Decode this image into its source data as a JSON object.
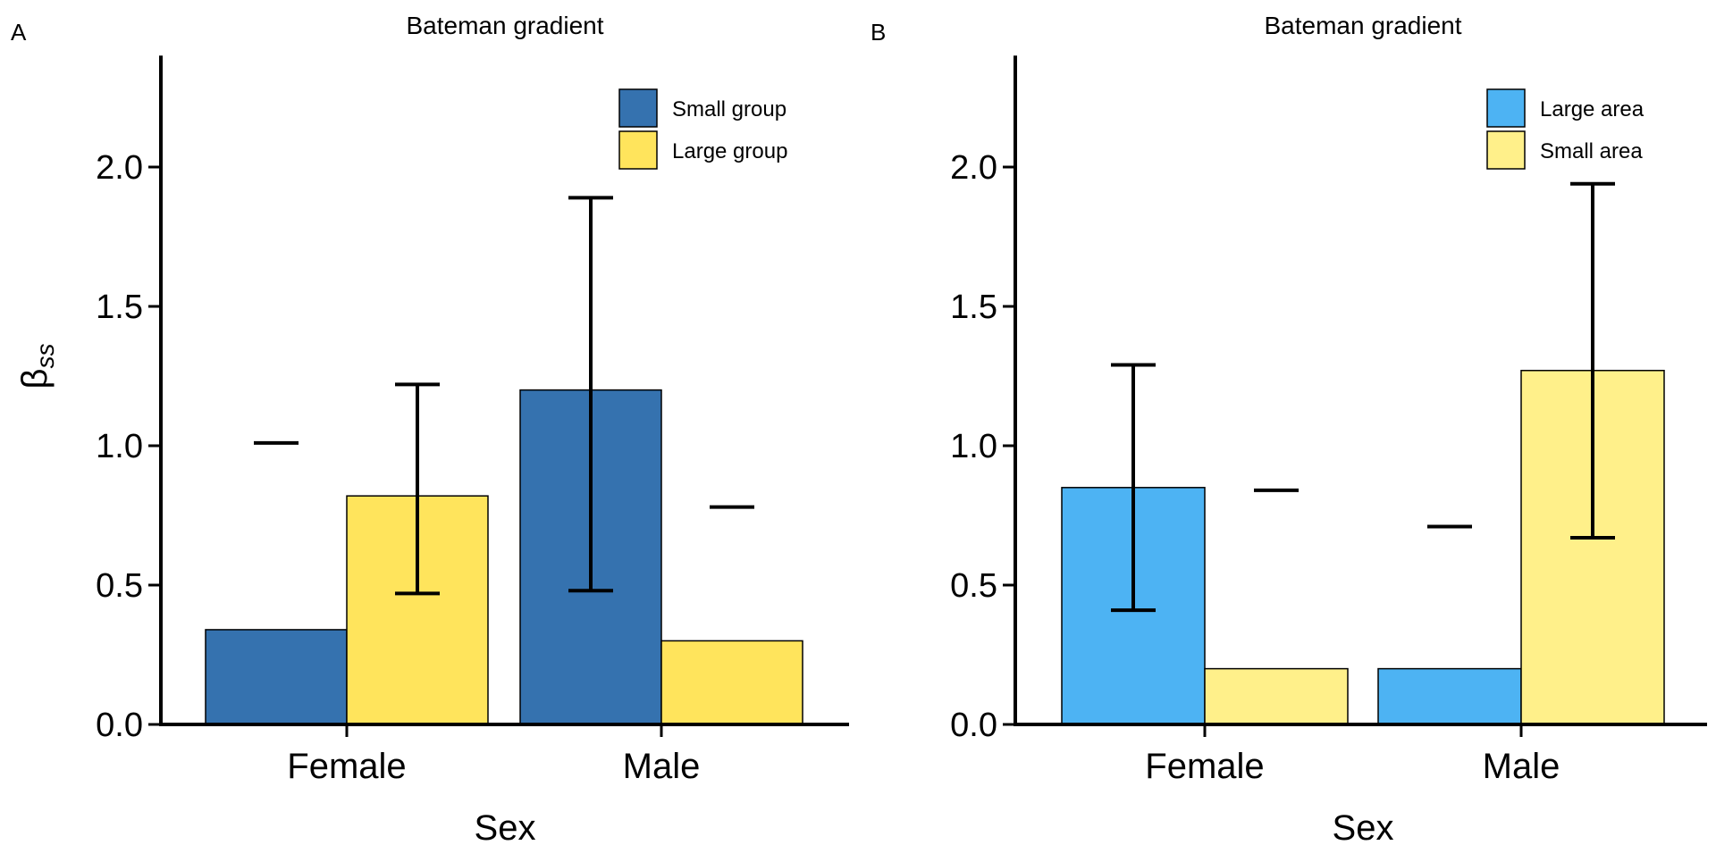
{
  "chart_data": [
    {
      "type": "bar",
      "panel_label": "A",
      "title": "Bateman gradient",
      "xlabel": "Sex",
      "ylabel": "β",
      "ylabel_sub": "ss",
      "ylim": [
        0,
        2.4
      ],
      "yticks": [
        0.0,
        0.5,
        1.0,
        1.5,
        2.0
      ],
      "ytick_labels": [
        "0.0",
        "0.5",
        "1.0",
        "1.5",
        "2.0"
      ],
      "categories": [
        "Female",
        "Male"
      ],
      "legend_position": "top-right",
      "grid": false,
      "series": [
        {
          "name": "Small group",
          "color": "#3572AF",
          "values": [
            0.34,
            1.2
          ],
          "ci_low": [
            1.01,
            0.48
          ],
          "ci_high": [
            1.01,
            1.89
          ]
        },
        {
          "name": "Large group",
          "color": "#FFE45C",
          "values": [
            0.82,
            0.3
          ],
          "ci_low": [
            0.47,
            0.78
          ],
          "ci_high": [
            1.22,
            0.78
          ]
        }
      ]
    },
    {
      "type": "bar",
      "panel_label": "B",
      "title": "Bateman gradient",
      "xlabel": "Sex",
      "ylabel": "",
      "ylabel_sub": "",
      "ylim": [
        0,
        2.4
      ],
      "yticks": [
        0.0,
        0.5,
        1.0,
        1.5,
        2.0
      ],
      "ytick_labels": [
        "0.0",
        "0.5",
        "1.0",
        "1.5",
        "2.0"
      ],
      "categories": [
        "Female",
        "Male"
      ],
      "legend_position": "top-right",
      "grid": false,
      "series": [
        {
          "name": "Large area",
          "color": "#4DB3F3",
          "values": [
            0.85,
            0.2
          ],
          "ci_low": [
            0.41,
            0.71
          ],
          "ci_high": [
            1.29,
            0.71
          ]
        },
        {
          "name": "Small area",
          "color": "#FFF08A",
          "values": [
            0.2,
            1.27
          ],
          "ci_low": [
            0.84,
            0.67
          ],
          "ci_high": [
            0.84,
            1.94
          ]
        }
      ]
    }
  ]
}
